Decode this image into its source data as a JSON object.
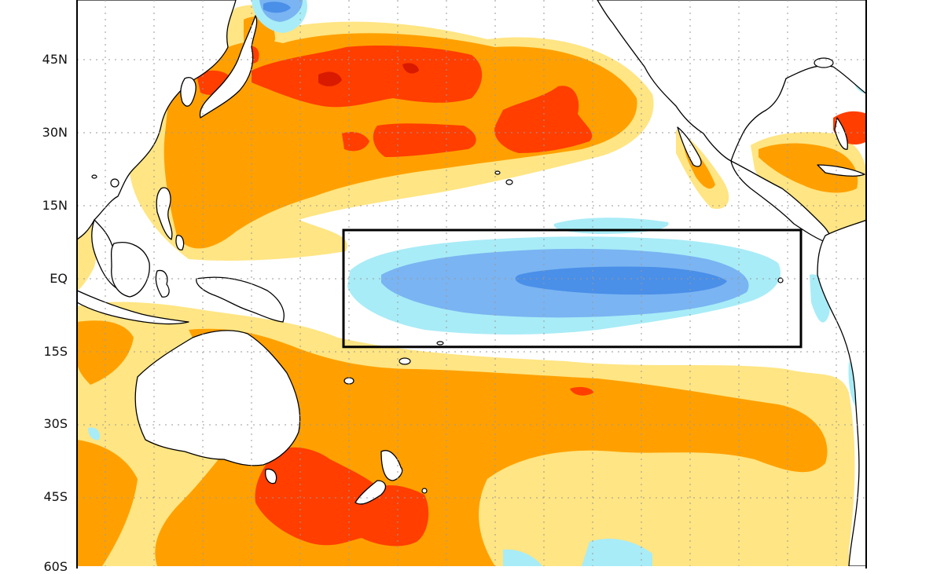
{
  "map": {
    "lat_labels": [
      "45N",
      "30N",
      "15N",
      "EQ",
      "15S",
      "30S",
      "45S",
      "60S"
    ],
    "colors": {
      "warm_light": "#ffe583",
      "warm_medium": "#ffa000",
      "warm_strong": "#ff3e00",
      "warm_extreme": "#d91a00",
      "cool_light": "#a8ecf7",
      "cool_medium": "#7ab4f2",
      "cool_strong": "#4a8fe8",
      "coast": "#000000",
      "grid": "#9a9a9a"
    },
    "region_box": {
      "lat_north": 10,
      "lat_south": -14,
      "lon_west": 170,
      "lon_east": 273
    }
  }
}
